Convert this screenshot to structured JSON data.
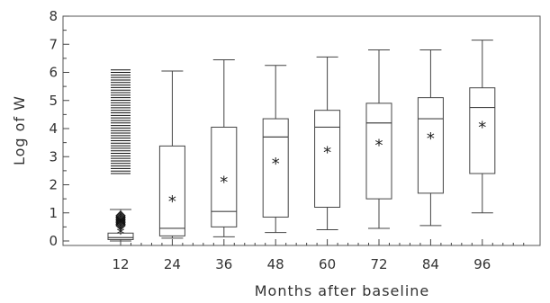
{
  "chart_data": {
    "type": "box",
    "title": "",
    "xlabel": "Months after baseline",
    "ylabel": "Log of W",
    "ylim": [
      0,
      8
    ],
    "yticks": [
      "0",
      "1",
      "2",
      "3",
      "4",
      "5",
      "6",
      "7",
      "8"
    ],
    "grid": false,
    "categories": [
      "12",
      "24",
      "36",
      "48",
      "60",
      "72",
      "84",
      "96"
    ],
    "boxes": [
      {
        "min": 0.0,
        "q1": 0.05,
        "median": 0.12,
        "q3": 0.28,
        "max": 1.12,
        "mean": 0.35,
        "outliers_low": [
          0.55,
          0.6,
          0.65,
          0.7,
          0.75,
          0.8,
          0.85,
          0.9
        ],
        "outliers_high_range": [
          2.4,
          6.15
        ]
      },
      {
        "min": 0.1,
        "q1": 0.18,
        "median": 0.45,
        "q3": 3.38,
        "max": 6.05,
        "mean": 1.5
      },
      {
        "min": 0.15,
        "q1": 0.5,
        "median": 1.05,
        "q3": 4.05,
        "max": 6.45,
        "mean": 2.2
      },
      {
        "min": 0.3,
        "q1": 0.85,
        "median": 3.7,
        "q3": 4.35,
        "max": 6.25,
        "mean": 2.85
      },
      {
        "min": 0.4,
        "q1": 1.2,
        "median": 4.05,
        "q3": 4.65,
        "max": 6.55,
        "mean": 3.25
      },
      {
        "min": 0.45,
        "q1": 1.5,
        "median": 4.2,
        "q3": 4.9,
        "max": 6.8,
        "mean": 3.5
      },
      {
        "min": 0.55,
        "q1": 1.7,
        "median": 4.35,
        "q3": 5.1,
        "max": 6.8,
        "mean": 3.75
      },
      {
        "min": 1.0,
        "q1": 2.4,
        "median": 4.75,
        "q3": 5.45,
        "max": 7.15,
        "mean": 4.15
      }
    ]
  }
}
